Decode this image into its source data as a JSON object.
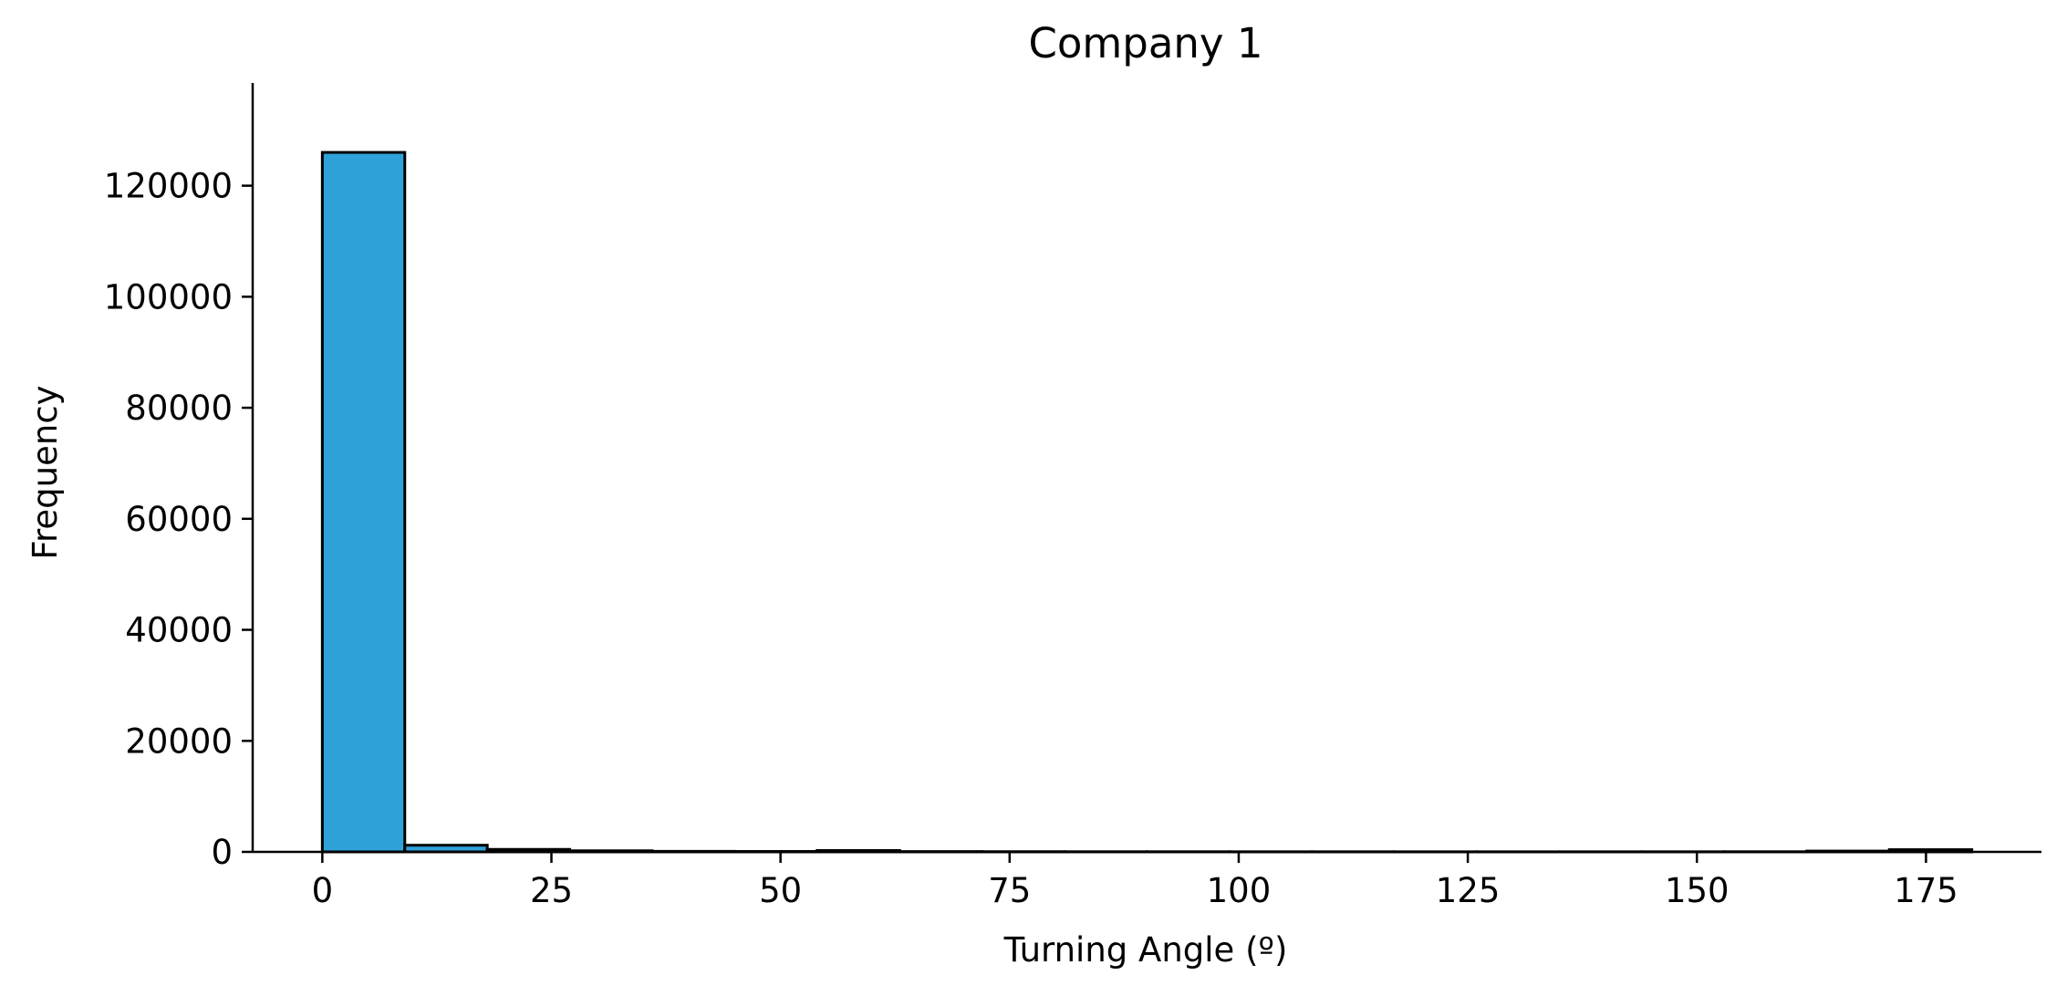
{
  "chart_data": {
    "type": "bar",
    "title": "Company 1",
    "xlabel": "Turning Angle (º)",
    "ylabel": "Frequency",
    "xlim": [
      -7.6,
      187.6
    ],
    "ylim": [
      0,
      138500
    ],
    "xticks": [
      0,
      25,
      50,
      75,
      100,
      125,
      150,
      175
    ],
    "yticks": [
      0,
      20000,
      40000,
      60000,
      80000,
      100000,
      120000
    ],
    "bins": {
      "edges": [
        0,
        9,
        18,
        27,
        36,
        45,
        54,
        63,
        72,
        81,
        90,
        99,
        108,
        117,
        126,
        135,
        144,
        153,
        162,
        171,
        180
      ],
      "values": [
        126000,
        1200,
        450,
        200,
        100,
        80,
        250,
        60,
        40,
        30,
        30,
        25,
        25,
        20,
        20,
        20,
        25,
        30,
        150,
        400
      ]
    },
    "grid": false,
    "legend": "none",
    "colors": {
      "bar_fill": "#2ea1d9",
      "bar_edge": "#000000",
      "axis": "#000000",
      "text": "#000000",
      "background": "#ffffff"
    }
  }
}
